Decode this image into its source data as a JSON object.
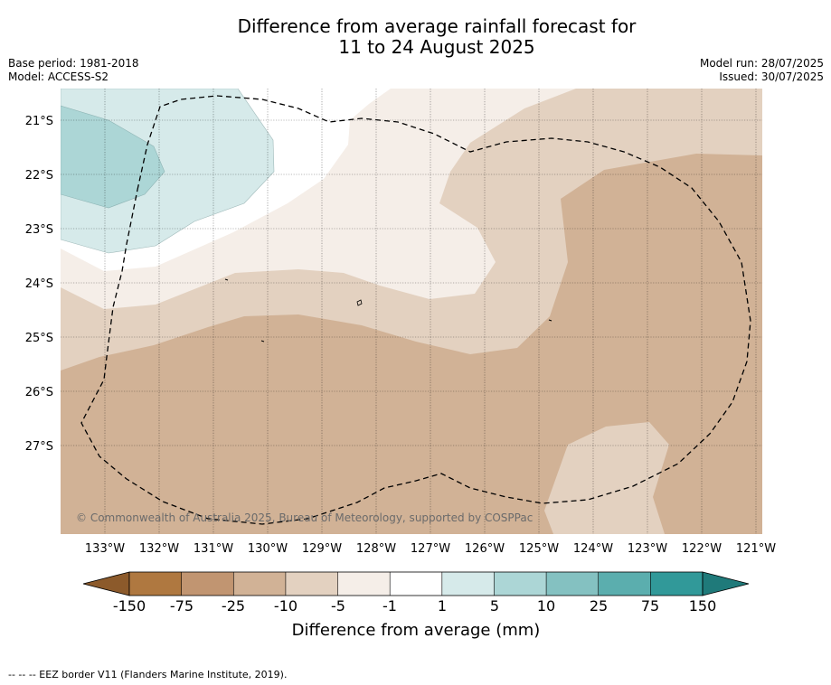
{
  "header": {
    "title_line1": "Difference from average rainfall forecast for",
    "title_line2": "11 to 24 August 2025",
    "base_period": "Base period: 1981-2018",
    "model": "Model: ACCESS-S2",
    "model_run": "Model run: 28/07/2025",
    "issued": "Issued: 30/07/2025"
  },
  "map": {
    "lat_labels": [
      "21°S",
      "22°S",
      "23°S",
      "24°S",
      "25°S",
      "26°S",
      "27°S"
    ],
    "lon_labels": [
      "133°W",
      "132°W",
      "131°W",
      "130°W",
      "129°W",
      "128°W",
      "127°W",
      "126°W",
      "125°W",
      "124°W",
      "123°W",
      "122°W",
      "121°W"
    ],
    "credit": "© Commonwealth of Australia 2025, Bureau of Meteorology, supported by COSPPac",
    "colors": {
      "dry_25_10": "#d1b296",
      "dry_10_5": "#e3d1c0",
      "dry_5_1": "#f5eee8",
      "neutral": "#ffffff",
      "wet_1_5": "#d6eaea",
      "wet_5_10": "#acd6d6"
    }
  },
  "colorbar": {
    "ticks": [
      "-150",
      "-75",
      "-25",
      "-10",
      "-5",
      "-1",
      "1",
      "5",
      "10",
      "25",
      "75",
      "150"
    ],
    "colors": [
      "#8c5a2b",
      "#af7840",
      "#c19571",
      "#d1b296",
      "#e3d1c0",
      "#f5eee8",
      "#ffffff",
      "#d6eaea",
      "#acd6d6",
      "#84c1c1",
      "#5baeae",
      "#319999",
      "#1f7a7a"
    ],
    "label": "Difference from average (mm)"
  },
  "footer": {
    "legend": "--  --  -- EEZ border V11 (Flanders Marine Institute, 2019)."
  }
}
